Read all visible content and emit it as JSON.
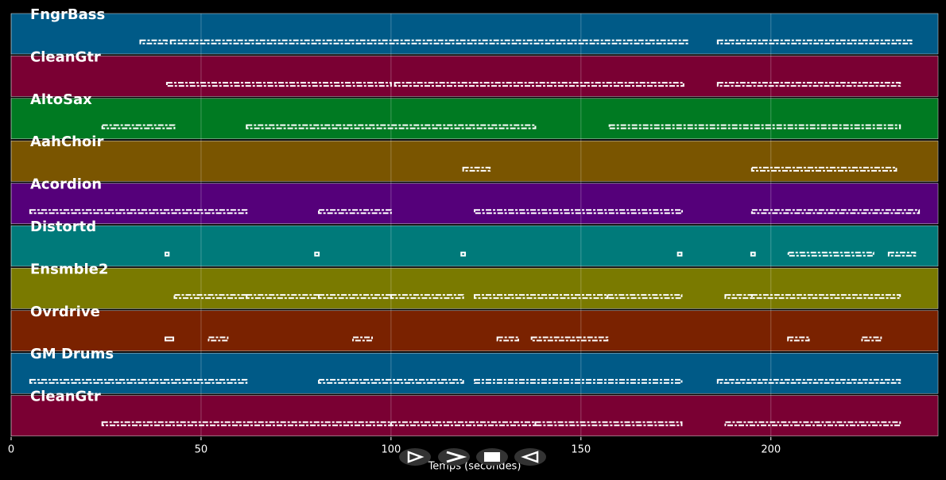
{
  "chart_data": {
    "type": "pianoroll",
    "xlabel": "Temps (secondes)",
    "xlim": [
      0,
      244
    ],
    "xticks": [
      0,
      50,
      100,
      150,
      200
    ],
    "grid": true,
    "series": [
      {
        "name": "FngrBass",
        "color": "#005a87",
        "segments": [
          [
            34,
            41
          ],
          [
            42,
            178
          ],
          [
            186,
            237
          ]
        ]
      },
      {
        "name": "CleanGtr",
        "color": "#7a0033",
        "segments": [
          [
            41,
            100
          ],
          [
            101,
            177
          ],
          [
            186,
            234
          ]
        ]
      },
      {
        "name": "AltoSax",
        "color": "#007a22",
        "segments": [
          [
            24,
            43
          ],
          [
            62,
            138
          ],
          [
            157.5,
            234
          ]
        ]
      },
      {
        "name": "AahChoir",
        "color": "#7a5500",
        "segments": [
          [
            119,
            126
          ],
          [
            195,
            233
          ]
        ]
      },
      {
        "name": "Acordion",
        "color": "#55007a",
        "segments": [
          [
            5,
            62
          ],
          [
            81,
            100
          ],
          [
            122,
            176.6
          ],
          [
            195,
            239
          ]
        ]
      },
      {
        "name": "Distortd",
        "color": "#007a7a",
        "segments": [
          [
            40.6,
            41.5
          ],
          [
            80,
            81
          ],
          [
            118.5,
            119.5
          ],
          [
            175.5,
            176.5
          ],
          [
            194.8,
            195.8
          ],
          [
            204.6,
            227
          ],
          [
            231,
            238
          ]
        ]
      },
      {
        "name": "Ensmble2",
        "color": "#7a7a00",
        "segments": [
          [
            43,
            62
          ],
          [
            62,
            81
          ],
          [
            81,
            100
          ],
          [
            100,
            119
          ],
          [
            122,
            157
          ],
          [
            157,
            176.5
          ],
          [
            188,
            195
          ],
          [
            195,
            234
          ]
        ]
      },
      {
        "name": "Ovrdrive",
        "color": "#7a2200",
        "segments": [
          [
            40.6,
            42.7
          ],
          [
            52,
            57
          ],
          [
            90,
            95
          ],
          [
            128,
            133.5
          ],
          [
            137,
            157
          ],
          [
            204.5,
            210
          ],
          [
            224,
            229
          ]
        ]
      },
      {
        "name": "GM Drums",
        "color": "#005a87",
        "segments": [
          [
            5,
            62
          ],
          [
            81,
            119
          ],
          [
            122,
            176.5
          ],
          [
            186,
            234
          ]
        ]
      },
      {
        "name": "CleanGtr",
        "color": "#7a0033",
        "segments": [
          [
            24,
            100
          ],
          [
            100,
            138
          ],
          [
            138,
            176.5
          ],
          [
            188,
            234
          ]
        ]
      }
    ]
  }
}
